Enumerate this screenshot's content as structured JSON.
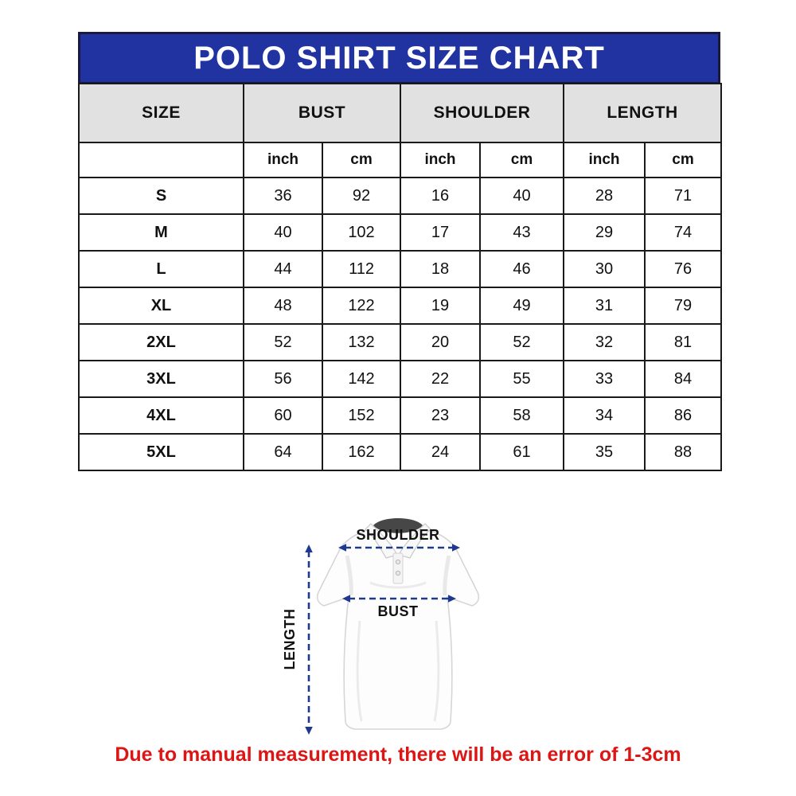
{
  "title_banner": {
    "title": "POLO SHIRT SIZE CHART"
  },
  "chart_data": {
    "type": "table",
    "title": "POLO SHIRT SIZE CHART",
    "column_groups": [
      "SIZE",
      "BUST",
      "SHOULDER",
      "LENGTH"
    ],
    "unit_headers": [
      "inch",
      "cm",
      "inch",
      "cm",
      "inch",
      "cm"
    ],
    "rows": [
      [
        "S",
        "36",
        "92",
        "16",
        "40",
        "28",
        "71"
      ],
      [
        "M",
        "40",
        "102",
        "17",
        "43",
        "29",
        "74"
      ],
      [
        "L",
        "44",
        "112",
        "18",
        "46",
        "30",
        "76"
      ],
      [
        "XL",
        "48",
        "122",
        "19",
        "49",
        "31",
        "79"
      ],
      [
        "2XL",
        "52",
        "132",
        "20",
        "52",
        "32",
        "81"
      ],
      [
        "3XL",
        "56",
        "142",
        "22",
        "55",
        "33",
        "84"
      ],
      [
        "4XL",
        "60",
        "152",
        "23",
        "58",
        "34",
        "86"
      ],
      [
        "5XL",
        "64",
        "162",
        "24",
        "61",
        "35",
        "88"
      ]
    ]
  },
  "diagram": {
    "shoulder_label": "SHOULDER",
    "bust_label": "BUST",
    "length_label": "LENGTH"
  },
  "note": "Due to manual measurement, there will be an error of 1-3cm",
  "colors": {
    "banner_blue": "#2033a0",
    "banner_border": "#191a3e",
    "header_gray": "#e1e1e1",
    "table_border": "#1a1a1a",
    "arrow_blue": "#1d3a90",
    "note_red": "#dc1515"
  }
}
